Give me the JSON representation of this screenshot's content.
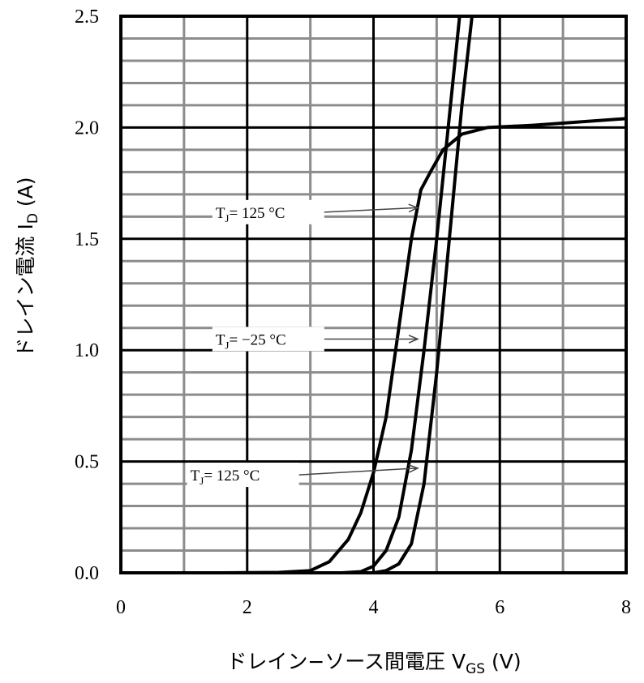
{
  "chart_data": {
    "type": "line",
    "xlabel": "ドレイン−ソース間電圧 V",
    "xlabel_sub": "GS",
    "xlabel_unit": " (V)",
    "ylabel": "ドレイン電流 I",
    "ylabel_sub": "D",
    "ylabel_unit": " (A)",
    "xlim": [
      0,
      8
    ],
    "ylim": [
      0,
      2.5
    ],
    "x_ticks": [
      "0",
      "2",
      "4",
      "6",
      "8"
    ],
    "y_ticks": [
      "0.0",
      "0.5",
      "1.0",
      "1.5",
      "2.0",
      "2.5"
    ],
    "grid": true,
    "series": [
      {
        "name": "TJ = 125 °C",
        "values": [
          [
            1.6,
            0
          ],
          [
            2.5,
            0.002
          ],
          [
            3.0,
            0.01
          ],
          [
            3.3,
            0.05
          ],
          [
            3.6,
            0.15
          ],
          [
            3.8,
            0.27
          ],
          [
            4.0,
            0.45
          ],
          [
            4.2,
            0.7
          ],
          [
            4.4,
            1.1
          ],
          [
            4.6,
            1.5
          ],
          [
            4.75,
            1.72
          ],
          [
            4.9,
            1.8
          ],
          [
            5.1,
            1.9
          ],
          [
            5.4,
            1.97
          ],
          [
            5.8,
            2.0
          ],
          [
            6.5,
            2.01
          ],
          [
            8.0,
            2.04
          ]
        ]
      },
      {
        "name": "TJ = −25 °C",
        "values": [
          [
            3.5,
            0
          ],
          [
            3.8,
            0.005
          ],
          [
            4.0,
            0.03
          ],
          [
            4.2,
            0.1
          ],
          [
            4.4,
            0.25
          ],
          [
            4.6,
            0.55
          ],
          [
            4.8,
            1.0
          ],
          [
            5.0,
            1.5
          ],
          [
            5.2,
            2.05
          ],
          [
            5.4,
            2.6
          ]
        ]
      },
      {
        "name": "TJ = 125 °C",
        "values": [
          [
            4.0,
            0
          ],
          [
            4.2,
            0.01
          ],
          [
            4.4,
            0.04
          ],
          [
            4.6,
            0.13
          ],
          [
            4.8,
            0.4
          ],
          [
            4.9,
            0.65
          ],
          [
            5.0,
            0.9
          ],
          [
            5.2,
            1.5
          ],
          [
            5.4,
            2.1
          ],
          [
            5.6,
            2.6
          ]
        ]
      }
    ],
    "annotations": [
      {
        "text": "T",
        "sub": "J",
        "rest": "= 125 °C",
        "x": 1.5,
        "y": 1.62,
        "arrow_to": [
          4.7,
          1.64
        ]
      },
      {
        "text": "T",
        "sub": "J",
        "rest": "= −25 °C",
        "x": 1.5,
        "y": 1.05,
        "arrow_to": [
          4.7,
          1.05
        ]
      },
      {
        "text": "T",
        "sub": "J",
        "rest": "= 125 °C",
        "x": 1.1,
        "y": 0.44,
        "arrow_to": [
          4.7,
          0.47
        ]
      }
    ]
  }
}
